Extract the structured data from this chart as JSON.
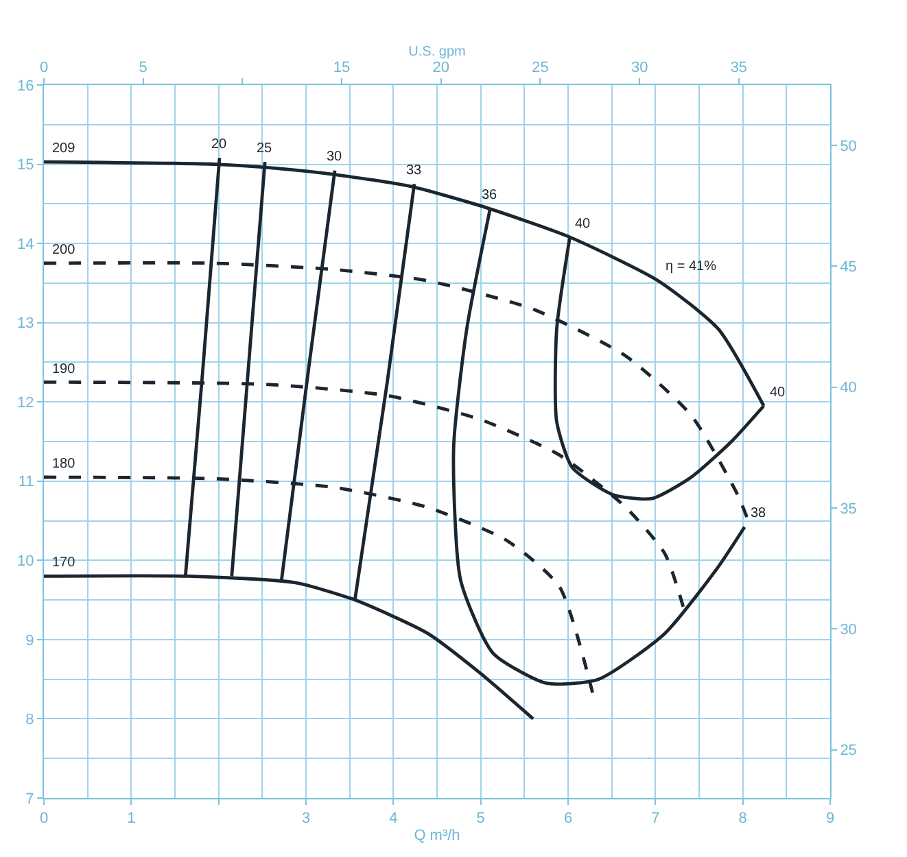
{
  "chart_data": {
    "type": "line",
    "xlabel": "Q m³/h",
    "x2label": "U.S. gpm",
    "xlim": [
      0,
      9
    ],
    "xticks": [
      0,
      1,
      {
        "value": 2,
        "label": null
      },
      3,
      4,
      5,
      6,
      7,
      8,
      9
    ],
    "ylim": [
      7,
      16
    ],
    "yticks": [
      7,
      8,
      9,
      10,
      11,
      12,
      13,
      14,
      15,
      16
    ],
    "x2lim": [
      0,
      39.6
    ],
    "x2ticks": [
      0,
      5,
      {
        "value": 10,
        "label": null
      },
      15,
      20,
      25,
      30,
      35
    ],
    "y2lim": [
      23,
      52.5
    ],
    "y2ticks": [
      25,
      30,
      35,
      40,
      45,
      50
    ],
    "grid": true,
    "legend": false,
    "marker": "none",
    "series": [
      {
        "name": "209",
        "color": "#1c2630",
        "line_style": "solid",
        "x": [
          0,
          1.97,
          2.65,
          3.33,
          4.2,
          5.07,
          6.02,
          7.03,
          7.72,
          8.24
        ],
        "values": [
          15.03,
          15.0,
          14.95,
          14.87,
          14.72,
          14.45,
          14.08,
          13.53,
          12.92,
          11.95
        ]
      },
      {
        "name": "200",
        "color": "#1c2630",
        "line_style": "dashed",
        "x": [
          0,
          1.97,
          3.33,
          4.39,
          5.6,
          6.66,
          7.41,
          7.94,
          8.09
        ],
        "values": [
          13.75,
          13.75,
          13.67,
          13.53,
          13.17,
          12.58,
          11.83,
          10.83,
          10.42
        ]
      },
      {
        "name": "190",
        "color": "#1c2630",
        "line_style": "dashed",
        "x": [
          0,
          2.57,
          3.93,
          4.99,
          5.9,
          6.66,
          7.11,
          7.34
        ],
        "values": [
          12.25,
          12.22,
          12.08,
          11.78,
          11.33,
          10.67,
          10.08,
          9.33
        ]
      },
      {
        "name": "180",
        "color": "#1c2630",
        "line_style": "dashed",
        "x": [
          0,
          1.97,
          3.33,
          4.39,
          5.3,
          5.9,
          6.28
        ],
        "values": [
          11.05,
          11.03,
          10.92,
          10.67,
          10.25,
          9.67,
          8.33
        ]
      },
      {
        "name": "170",
        "color": "#1c2630",
        "line_style": "solid",
        "x": [
          0,
          1.66,
          2.87,
          3.56,
          4.39,
          4.99,
          5.6
        ],
        "values": [
          9.8,
          9.8,
          9.72,
          9.5,
          9.08,
          8.58,
          8.0
        ]
      },
      {
        "name": "20",
        "color": "#1c2630",
        "line_style": "solid",
        "x": [
          2.01,
          1.82,
          1.62
        ],
        "values": [
          15.08,
          12.42,
          9.8
        ]
      },
      {
        "name": "25",
        "color": "#1c2630",
        "line_style": "solid",
        "x": [
          2.53,
          2.34,
          2.15
        ],
        "values": [
          15.03,
          12.42,
          9.8
        ]
      },
      {
        "name": "30",
        "color": "#1c2630",
        "line_style": "solid",
        "x": [
          3.33,
          3.03,
          2.72
        ],
        "values": [
          14.92,
          12.42,
          9.75
        ]
      },
      {
        "name": "33",
        "color": "#1c2630",
        "line_style": "solid",
        "x": [
          4.24,
          3.93,
          3.56
        ],
        "values": [
          14.75,
          12.25,
          9.5
        ]
      },
      {
        "name": "36",
        "color": "#1c2630",
        "line_style": "solid",
        "x": [
          5.11,
          4.84,
          4.69,
          4.77,
          5.14,
          5.75,
          6.35,
          7.11,
          7.72,
          8.02
        ],
        "values": [
          14.45,
          12.92,
          11.42,
          9.75,
          8.83,
          8.45,
          8.5,
          9.08,
          9.92,
          10.42
        ]
      },
      {
        "color": "#1c2630",
        "line_style": "solid",
        "x": [
          6.02,
          5.87,
          5.87,
          6.05,
          6.51,
          6.96,
          7.41,
          7.87,
          8.24
        ],
        "values": [
          14.08,
          12.92,
          11.75,
          11.17,
          10.83,
          10.78,
          11.05,
          11.5,
          11.95
        ]
      }
    ],
    "annotations": [
      {
        "text": "38",
        "x": 8.02,
        "y": 10.42
      },
      {
        "text": "40",
        "x": 6.02,
        "y": 14.08
      },
      {
        "text": "40",
        "x": 8.24,
        "y": 11.95
      },
      {
        "text": "η = 41%",
        "x": 7.05,
        "y": 13.55
      }
    ]
  }
}
